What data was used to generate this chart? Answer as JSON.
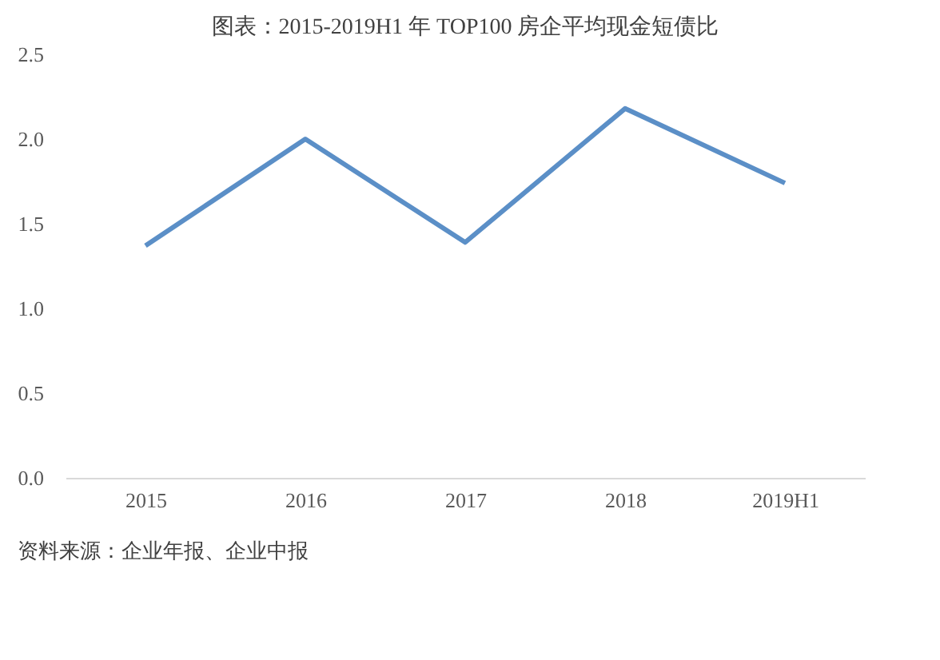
{
  "chart_data": {
    "type": "line",
    "title": "图表：2015-2019H1 年 TOP100 房企平均现金短债比",
    "categories": [
      "2015",
      "2016",
      "2017",
      "2018",
      "2019H1"
    ],
    "series": [
      {
        "color": "#5b8fc7",
        "values": [
          1.37,
          2.0,
          1.39,
          2.18,
          1.74
        ]
      }
    ],
    "ylim": [
      0,
      2.5
    ],
    "yticks": [
      {
        "value": 0,
        "label": "0.0"
      },
      {
        "value": 0.5,
        "label": "0.5"
      },
      {
        "value": 1,
        "label": "1.0"
      },
      {
        "value": 1.5,
        "label": "1.5"
      },
      {
        "value": 2,
        "label": "2.0"
      },
      {
        "value": 2.5,
        "label": "2.5"
      }
    ],
    "grid": false,
    "marker": "none",
    "line_style": "solid",
    "annotations": [
      "资料来源：企业年报、企业中报"
    ]
  }
}
